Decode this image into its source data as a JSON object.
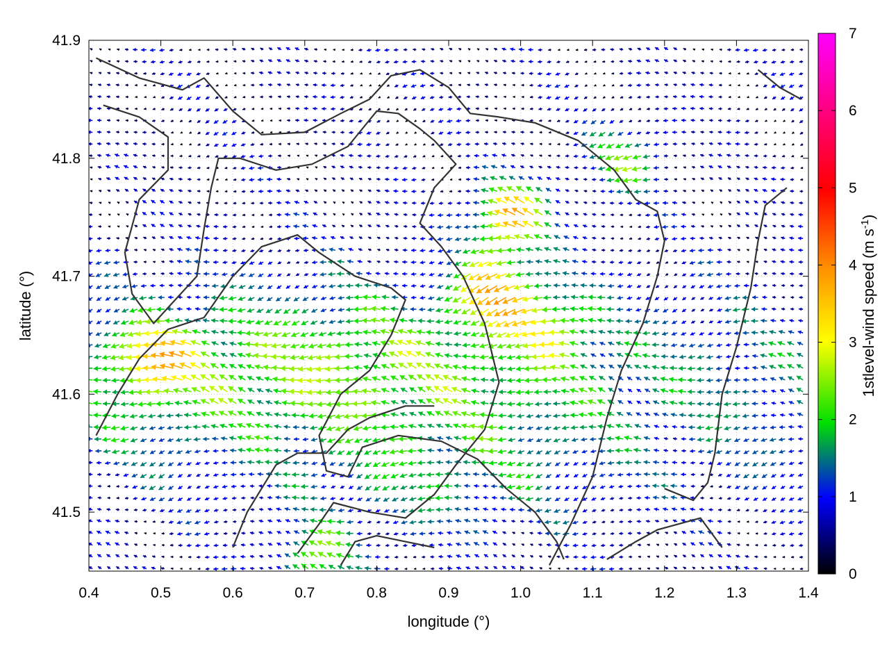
{
  "chart_data": {
    "type": "vector-field",
    "xlabel": "longitude (°)",
    "ylabel": "latitude (°)",
    "colorbar_label": "1stlevel-wind speed (m s",
    "colorbar_label_exp": "-1",
    "colorbar_label_end": ")",
    "xlim": [
      0.4,
      1.4
    ],
    "ylim": [
      41.45,
      41.9
    ],
    "xticks": [
      0.4,
      0.5,
      0.6,
      0.7,
      0.8,
      0.9,
      1.0,
      1.1,
      1.2,
      1.3,
      1.4
    ],
    "xtick_labels": [
      "0.4",
      "0.5",
      "0.6",
      "0.7",
      "0.8",
      "0.9",
      "1.0",
      "1.1",
      "1.2",
      "1.3",
      "1.4"
    ],
    "yticks": [
      41.5,
      41.6,
      41.7,
      41.8,
      41.9
    ],
    "ytick_labels": [
      "41.5",
      "41.6",
      "41.7",
      "41.8",
      "41.9"
    ],
    "colorbar_range": [
      0,
      7
    ],
    "colorbar_ticks": [
      0,
      1,
      2,
      3,
      4,
      5,
      6,
      7
    ],
    "colorbar_tick_labels": [
      "0",
      "1",
      "2",
      "3",
      "4",
      "5",
      "6",
      "7"
    ],
    "colormap": [
      "#000000",
      "#0000ff",
      "#00e000",
      "#ffff00",
      "#ff8c00",
      "#ff0000",
      "#ff00ff"
    ],
    "grid": true,
    "dominant_wind_direction": "from east (arrows pointing west)",
    "wind_maxima": [
      {
        "lon": 0.99,
        "lat": 41.75,
        "speed": 4.5
      },
      {
        "lon": 0.97,
        "lat": 41.69,
        "speed": 4.0
      },
      {
        "lon": 1.15,
        "lat": 41.8,
        "speed": 3.3
      },
      {
        "lon": 0.5,
        "lat": 41.63,
        "speed": 3.3
      },
      {
        "lon": 0.72,
        "lat": 41.46,
        "speed": 3.4
      },
      {
        "lon": 1.05,
        "lat": 41.66,
        "speed": 3.0
      }
    ],
    "contour_lines": [
      [
        [
          0.41,
          41.885
        ],
        [
          0.47,
          41.868
        ],
        [
          0.53,
          41.858
        ],
        [
          0.56,
          41.868
        ],
        [
          0.6,
          41.84
        ],
        [
          0.64,
          41.82
        ],
        [
          0.7,
          41.822
        ],
        [
          0.75,
          41.838
        ],
        [
          0.79,
          41.85
        ],
        [
          0.82,
          41.87
        ],
        [
          0.86,
          41.875
        ],
        [
          0.9,
          41.86
        ],
        [
          0.93,
          41.838
        ],
        [
          0.97,
          41.835
        ],
        [
          1.02,
          41.83
        ],
        [
          1.08,
          41.815
        ],
        [
          1.13,
          41.79
        ],
        [
          1.16,
          41.765
        ],
        [
          1.19,
          41.755
        ],
        [
          1.2,
          41.73
        ],
        [
          1.19,
          41.7
        ],
        [
          1.17,
          41.66
        ],
        [
          1.14,
          41.62
        ],
        [
          1.12,
          41.58
        ],
        [
          1.1,
          41.53
        ],
        [
          1.07,
          41.49
        ],
        [
          1.04,
          41.455
        ]
      ],
      [
        [
          0.42,
          41.845
        ],
        [
          0.47,
          41.835
        ],
        [
          0.51,
          41.818
        ],
        [
          0.51,
          41.79
        ],
        [
          0.47,
          41.765
        ],
        [
          0.45,
          41.72
        ],
        [
          0.46,
          41.685
        ],
        [
          0.49,
          41.66
        ],
        [
          0.52,
          41.68
        ],
        [
          0.55,
          41.7
        ],
        [
          0.56,
          41.74
        ],
        [
          0.57,
          41.775
        ],
        [
          0.58,
          41.8
        ],
        [
          0.61,
          41.8
        ],
        [
          0.66,
          41.79
        ],
        [
          0.71,
          41.795
        ],
        [
          0.76,
          41.81
        ],
        [
          0.8,
          41.84
        ],
        [
          0.83,
          41.838
        ],
        [
          0.86,
          41.825
        ],
        [
          0.88,
          41.815
        ],
        [
          0.91,
          41.795
        ],
        [
          0.88,
          41.775
        ],
        [
          0.86,
          41.745
        ],
        [
          0.89,
          41.725
        ],
        [
          0.92,
          41.7
        ],
        [
          0.95,
          41.66
        ],
        [
          0.97,
          41.61
        ],
        [
          0.95,
          41.57
        ],
        [
          0.91,
          41.54
        ],
        [
          0.88,
          41.515
        ],
        [
          0.84,
          41.495
        ],
        [
          0.79,
          41.5
        ],
        [
          0.74,
          41.508
        ],
        [
          0.72,
          41.49
        ],
        [
          0.69,
          41.465
        ]
      ],
      [
        [
          0.41,
          41.565
        ],
        [
          0.44,
          41.6
        ],
        [
          0.47,
          41.63
        ],
        [
          0.51,
          41.655
        ],
        [
          0.56,
          41.665
        ],
        [
          0.6,
          41.7
        ],
        [
          0.64,
          41.725
        ],
        [
          0.69,
          41.735
        ],
        [
          0.72,
          41.72
        ],
        [
          0.77,
          41.7
        ],
        [
          0.82,
          41.69
        ],
        [
          0.84,
          41.68
        ],
        [
          0.82,
          41.65
        ],
        [
          0.79,
          41.62
        ],
        [
          0.75,
          41.6
        ],
        [
          0.72,
          41.565
        ],
        [
          0.73,
          41.535
        ],
        [
          0.76,
          41.53
        ],
        [
          0.78,
          41.555
        ],
        [
          0.83,
          41.565
        ],
        [
          0.89,
          41.56
        ],
        [
          0.94,
          41.545
        ],
        [
          0.98,
          41.52
        ],
        [
          1.02,
          41.5
        ],
        [
          1.05,
          41.475
        ],
        [
          1.06,
          41.46
        ]
      ],
      [
        [
          0.6,
          41.47
        ],
        [
          0.62,
          41.5
        ],
        [
          0.64,
          41.52
        ],
        [
          0.66,
          41.54
        ],
        [
          0.69,
          41.55
        ],
        [
          0.73,
          41.55
        ],
        [
          0.76,
          41.57
        ],
        [
          0.79,
          41.58
        ],
        [
          0.84,
          41.59
        ],
        [
          0.88,
          41.59
        ]
      ],
      [
        [
          1.12,
          41.46
        ],
        [
          1.16,
          41.475
        ],
        [
          1.19,
          41.485
        ],
        [
          1.22,
          41.49
        ],
        [
          1.25,
          41.495
        ],
        [
          1.28,
          41.47
        ]
      ],
      [
        [
          1.2,
          41.52
        ],
        [
          1.24,
          41.51
        ],
        [
          1.26,
          41.525
        ],
        [
          1.27,
          41.55
        ],
        [
          1.28,
          41.6
        ],
        [
          1.3,
          41.64
        ],
        [
          1.32,
          41.69
        ],
        [
          1.33,
          41.73
        ],
        [
          1.34,
          41.76
        ],
        [
          1.37,
          41.775
        ]
      ],
      [
        [
          1.33,
          41.875
        ],
        [
          1.36,
          41.86
        ],
        [
          1.39,
          41.85
        ]
      ],
      [
        [
          0.75,
          41.455
        ],
        [
          0.77,
          41.475
        ],
        [
          0.8,
          41.48
        ],
        [
          0.84,
          41.475
        ],
        [
          0.88,
          41.47
        ]
      ]
    ]
  }
}
